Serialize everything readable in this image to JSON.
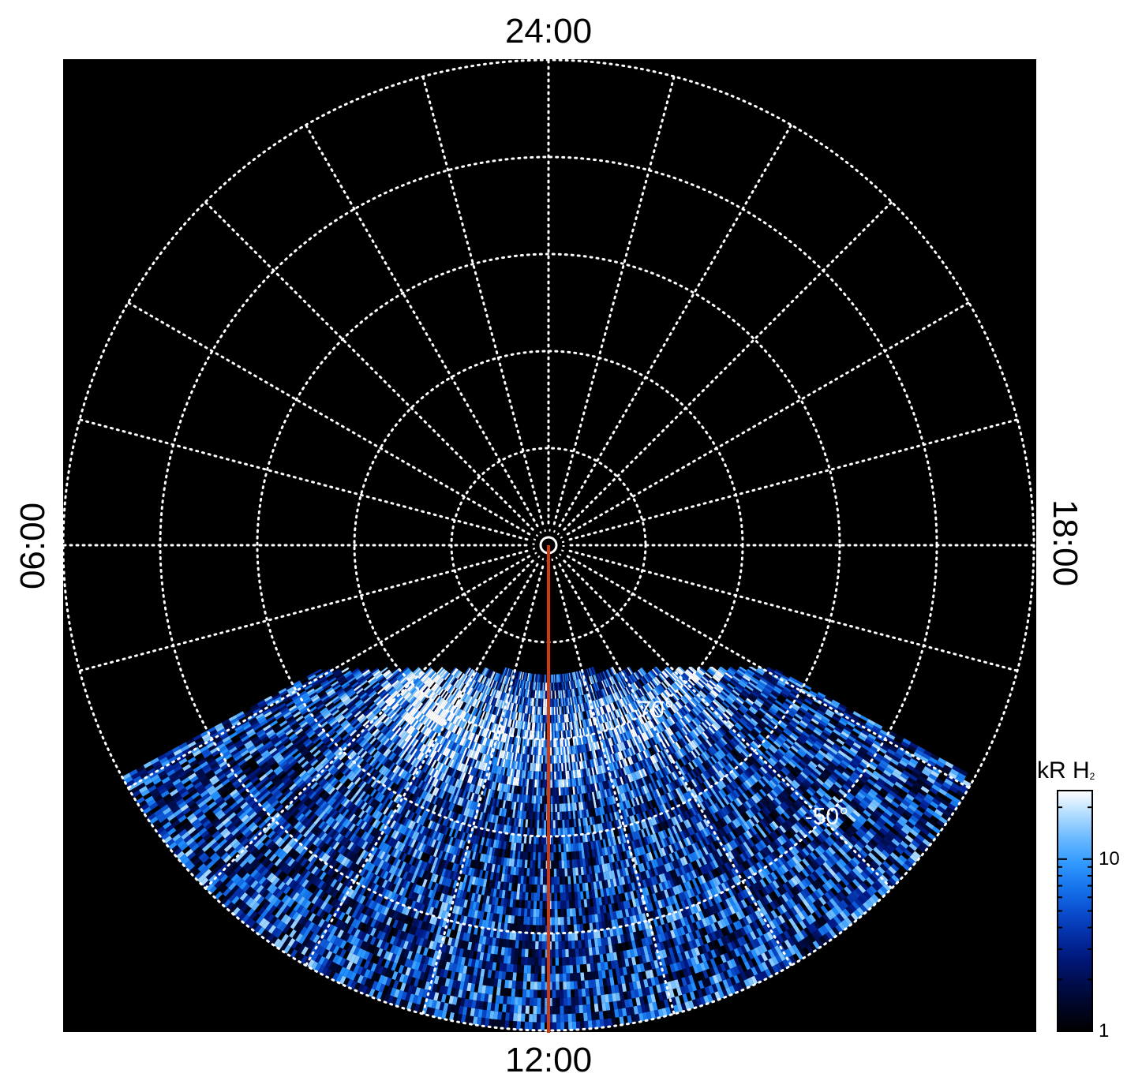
{
  "chart_data": {
    "type": "heatmap",
    "projection": "polar",
    "local_time_labels": {
      "top": "24:00",
      "bottom": "12:00",
      "left": "06:00",
      "right": "18:00"
    },
    "latitude_rings_deg": [
      -80,
      -70,
      -60,
      -50,
      -40
    ],
    "latitude_labels": [
      {
        "lat": -70,
        "text": "-70°"
      },
      {
        "lat": -50,
        "text": "-50°"
      }
    ],
    "meridian_step_hours": 1,
    "coverage": {
      "lt_from_hours": 7.9,
      "lt_to_hours": 16.1
    },
    "intensity_range_kR": [
      1,
      25
    ],
    "cut_line_lt_hours": 12,
    "colorbar": {
      "title": "kR H",
      "title_sub": "2",
      "scale": "log",
      "range": [
        1,
        25
      ],
      "ticks": [
        {
          "value": 1,
          "label": "1"
        },
        {
          "value": 10,
          "label": "10"
        }
      ]
    },
    "colors": {
      "background": "#000000",
      "grid": "#ffffff",
      "cut_line": "#d03a10",
      "colormap": [
        "#000000",
        "#000a3c",
        "#001a8a",
        "#0a4fd0",
        "#1f8fff",
        "#7cc4ff",
        "#ffffff"
      ]
    }
  }
}
